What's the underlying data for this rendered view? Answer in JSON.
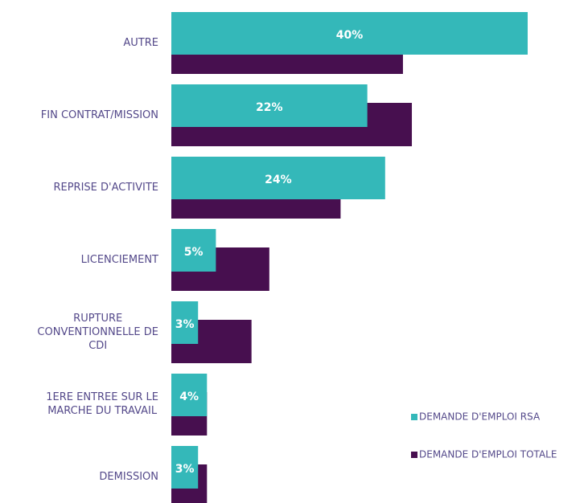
{
  "chart_data": {
    "type": "bar",
    "categories": [
      "AUTRE",
      "FIN CONTRAT/MISSION",
      "REPRISE D'ACTIVITE",
      "LICENCIEMENT",
      "RUPTURE\nCONVENTIONNELLE DE\nCDI",
      "1ERE ENTREE SUR LE\nMARCHE DU TRAVAIL",
      "DEMISSION"
    ],
    "series": [
      {
        "name": "DEMANDE D'EMPLOI RSA",
        "color": "#34b8b9",
        "values": [
          40,
          22,
          24,
          5,
          3,
          4,
          3
        ],
        "value_labels": [
          "40%",
          "22%",
          "24%",
          "5%",
          "3%",
          "4%",
          "3%"
        ]
      },
      {
        "name": "DEMANDE D'EMPLOI TOTALE",
        "color": "#470f4f",
        "values": [
          26,
          27,
          19,
          11,
          9,
          4,
          4
        ]
      }
    ]
  }
}
